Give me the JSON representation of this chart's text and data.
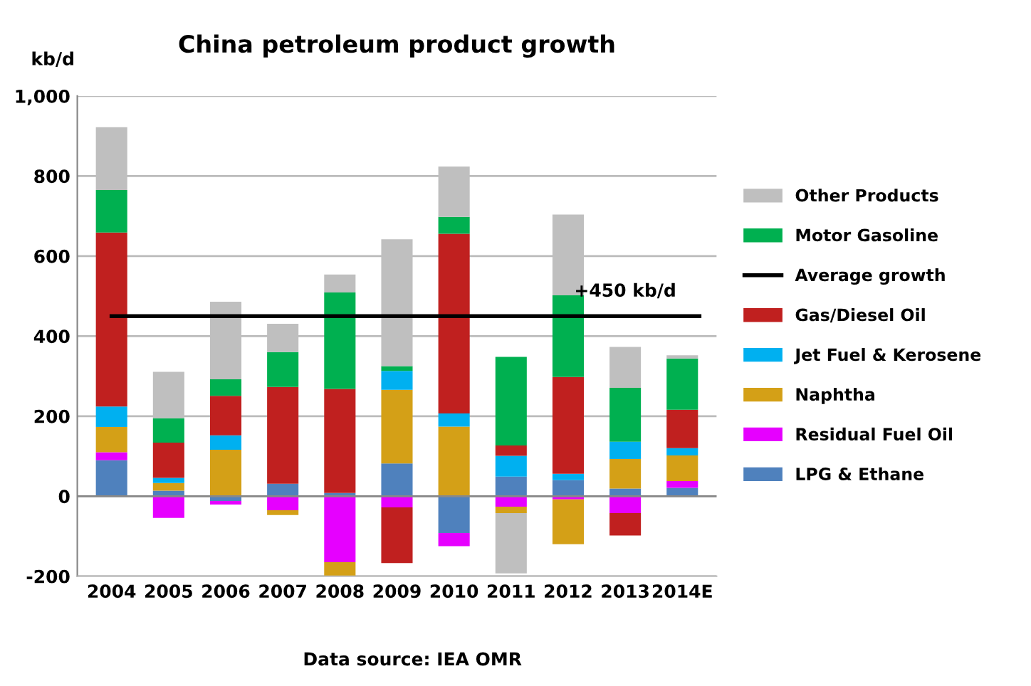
{
  "chart_data": {
    "type": "bar",
    "title": "China petroleum product growth",
    "ylabel": "kb/d",
    "categories": [
      "2004",
      "2005",
      "2006",
      "2007",
      "2008",
      "2009",
      "2010",
      "2011",
      "2012",
      "2013",
      "2014E"
    ],
    "stacked": true,
    "series": [
      {
        "name": "LPG & Ethane",
        "color": "#4f81bd",
        "values": [
          90,
          14,
          -12,
          31,
          8,
          82,
          -92,
          49,
          40,
          19,
          21
        ]
      },
      {
        "name": "Residual Fuel Oil",
        "color": "#e600ff",
        "values": [
          20,
          -54,
          -9,
          -35,
          -165,
          -28,
          -33,
          -26,
          -8,
          -42,
          17
        ]
      },
      {
        "name": "Naphtha",
        "color": "#d4a017",
        "values": [
          63,
          19,
          116,
          -12,
          -35,
          184,
          174,
          -16,
          -112,
          74,
          64
        ]
      },
      {
        "name": "Jet Fuel & Kerosene",
        "color": "#00b0f0",
        "values": [
          51,
          13,
          36,
          null,
          null,
          47,
          33,
          52,
          16,
          43,
          18
        ]
      },
      {
        "name": "Gas/Diesel Oil",
        "color": "#c0201f",
        "values": [
          435,
          88,
          99,
          242,
          260,
          -139,
          449,
          26,
          242,
          -56,
          96
        ]
      },
      {
        "name": "Motor Gasoline",
        "color": "#00b050",
        "values": [
          106,
          61,
          41,
          87,
          241,
          12,
          42,
          221,
          204,
          135,
          128
        ]
      },
      {
        "name": "Other Products",
        "color": "#bfbfbf",
        "values": [
          157,
          116,
          194,
          71,
          45,
          317,
          126,
          -151,
          202,
          102,
          8
        ]
      }
    ],
    "ylim": [
      -200,
      1000
    ],
    "yticks": [
      -200,
      0,
      200,
      400,
      600,
      800,
      {
        "value": 1000,
        "label": "1,000"
      }
    ],
    "grid": "y",
    "legend": "right",
    "ref_lines": [
      {
        "axis": "y",
        "value": 450,
        "label": "Average growth",
        "color": "#000000"
      }
    ],
    "annotations": [
      {
        "text": "+450 kb/d",
        "x": "2013",
        "y": 450
      },
      "Data source: IEA OMR"
    ]
  }
}
